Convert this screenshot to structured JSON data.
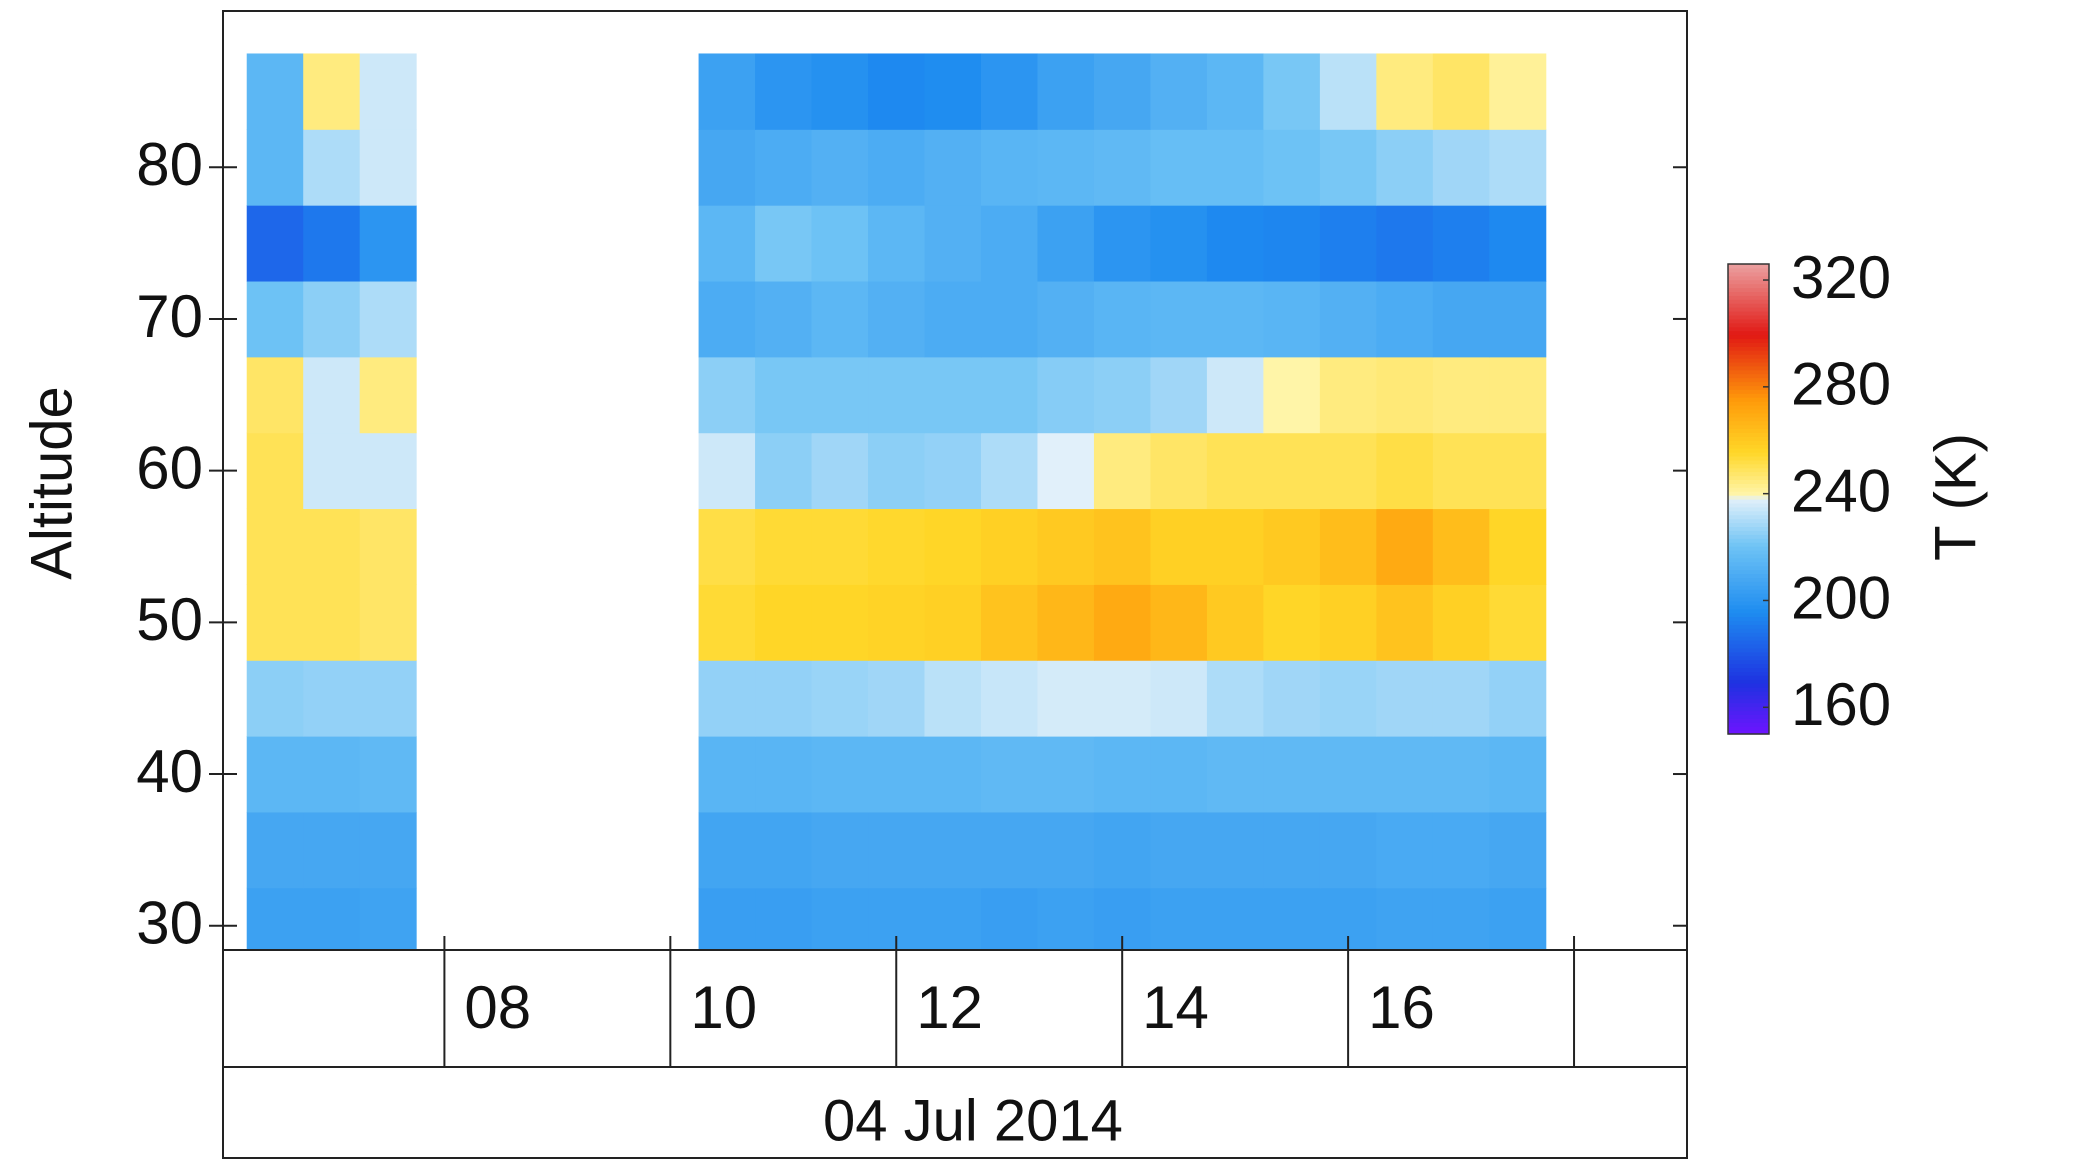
{
  "chart_data": {
    "type": "heatmap",
    "y_label": "Altitude",
    "x_label": "04 Jul 2014",
    "colorbar_label": "T (K)",
    "x": [
      6.5,
      7.0,
      7.5,
      10.5,
      11.0,
      11.5,
      12.0,
      12.5,
      13.0,
      13.5,
      14.0,
      14.5,
      15.0,
      15.5,
      16.0,
      16.5,
      17.0,
      17.5
    ],
    "y": [
      30,
      35,
      40,
      45,
      50,
      55,
      60,
      65,
      70,
      75,
      80,
      85
    ],
    "z": [
      [
        205,
        205,
        206,
        204,
        204,
        205,
        205,
        205,
        204,
        205,
        204,
        205,
        205,
        205,
        205,
        206,
        206,
        205
      ],
      [
        208,
        208,
        208,
        207,
        207,
        208,
        208,
        208,
        208,
        208,
        207,
        208,
        208,
        208,
        208,
        209,
        209,
        208
      ],
      [
        215,
        215,
        216,
        214,
        214,
        215,
        215,
        215,
        216,
        216,
        215,
        215,
        216,
        216,
        216,
        216,
        216,
        215
      ],
      [
        225,
        226,
        226,
        226,
        226,
        227,
        228,
        232,
        234,
        236,
        236,
        235,
        230,
        228,
        227,
        228,
        228,
        226
      ],
      [
        250,
        250,
        248,
        254,
        256,
        256,
        257,
        258,
        262,
        266,
        270,
        266,
        260,
        256,
        258,
        262,
        258,
        254
      ],
      [
        250,
        250,
        248,
        252,
        254,
        254,
        255,
        256,
        258,
        260,
        262,
        258,
        258,
        260,
        264,
        270,
        264,
        256
      ],
      [
        250,
        235,
        235,
        235,
        225,
        228,
        225,
        226,
        230,
        238,
        245,
        248,
        250,
        250,
        250,
        252,
        250,
        250
      ],
      [
        248,
        235,
        245,
        225,
        222,
        222,
        222,
        222,
        222,
        224,
        225,
        228,
        235,
        240,
        245,
        246,
        245,
        245
      ],
      [
        220,
        225,
        230,
        210,
        212,
        215,
        212,
        210,
        210,
        212,
        214,
        215,
        215,
        214,
        212,
        210,
        208,
        208
      ],
      [
        185,
        190,
        200,
        215,
        222,
        220,
        215,
        212,
        210,
        205,
        200,
        198,
        195,
        194,
        192,
        190,
        192,
        195
      ],
      [
        215,
        230,
        235,
        208,
        210,
        212,
        210,
        212,
        214,
        215,
        216,
        218,
        218,
        220,
        222,
        225,
        228,
        230
      ],
      [
        215,
        245,
        235,
        205,
        200,
        198,
        195,
        196,
        200,
        205,
        208,
        212,
        215,
        222,
        232,
        245,
        248,
        242
      ]
    ],
    "xlim": [
      6.04,
      19.0
    ],
    "ylim": [
      28.4,
      90.3
    ],
    "xticks": [
      {
        "value": 8,
        "label": "08"
      },
      {
        "value": 10,
        "label": "10"
      },
      {
        "value": 12,
        "label": "12"
      },
      {
        "value": 14,
        "label": "14"
      },
      {
        "value": 16,
        "label": "16"
      },
      {
        "value": 18,
        "label": null
      }
    ],
    "yticks": [
      30,
      40,
      50,
      60,
      70,
      80
    ],
    "clim": [
      150,
      326
    ],
    "cticks": [
      160,
      200,
      240,
      280,
      320
    ]
  }
}
